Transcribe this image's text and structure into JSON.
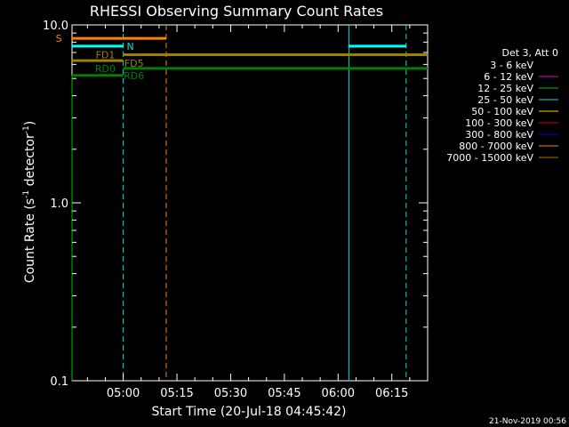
{
  "chart_data": {
    "type": "line",
    "title": "RHESSI Observing Summary Count Rates",
    "xlabel": "Start Time (20-Jul-18 04:45:42)",
    "ylabel_main": "Count Rate (s",
    "ylabel_sup1": "-1",
    "ylabel_mid": " detector",
    "ylabel_sup2": "-1",
    "ylabel_end": ")",
    "y_scale": "log",
    "ylim": [
      0.1,
      10.0
    ],
    "xlim": [
      "04:45:42",
      "06:25:00"
    ],
    "x_ticks": [
      {
        "label": "05:00",
        "t": "05:00"
      },
      {
        "label": "05:15",
        "t": "05:15"
      },
      {
        "label": "05:30",
        "t": "05:30"
      },
      {
        "label": "05:45",
        "t": "05:45"
      },
      {
        "label": "06:00",
        "t": "06:00"
      },
      {
        "label": "06:15",
        "t": "06:15"
      }
    ],
    "y_ticks": [
      {
        "label": "10.0",
        "v": 10.0
      },
      {
        "label": "1.0",
        "v": 1.0
      },
      {
        "label": "0.1",
        "v": 0.1
      }
    ],
    "legend": {
      "title": "Det 3, Att 0",
      "placement": "right",
      "entries": [
        {
          "label": "3 - 6 keV",
          "color": "#000000"
        },
        {
          "label": "6 - 12 keV",
          "color": "#e000e0"
        },
        {
          "label": "12 - 25 keV",
          "color": "#00c000"
        },
        {
          "label": "25 - 50 keV",
          "color": "#00e0e0"
        },
        {
          "label": "50 - 100 keV",
          "color": "#e0e000"
        },
        {
          "label": "100 - 300 keV",
          "color": "#e00000"
        },
        {
          "label": "300 - 800 keV",
          "color": "#0000e0"
        },
        {
          "label": "800 - 7000 keV",
          "color": "#ff8000"
        },
        {
          "label": "7000 - 15000 keV",
          "color": "#a08000"
        }
      ]
    },
    "intervals": [
      {
        "name": "S",
        "color": "#ff8000",
        "y": 8.4,
        "t0": "04:45:42",
        "t1": "05:12:00"
      },
      {
        "name": "N",
        "color": "#00ffff",
        "y": 7.6,
        "t0": "04:45:42",
        "t1": "05:00:00"
      },
      {
        "name": "N",
        "color": "#00ffff",
        "y": 7.6,
        "t0": "06:03:00",
        "t1": "06:19:00"
      },
      {
        "name": "FD1",
        "color": "#a08000",
        "y": 6.3,
        "t0": "04:45:42",
        "t1": "05:00:00"
      },
      {
        "name": "FD5",
        "color": "#a08000",
        "y": 6.8,
        "t0": "05:00:00",
        "t1": "06:25:00"
      },
      {
        "name": "RD0",
        "color": "#008000",
        "y": 5.2,
        "t0": "04:45:42",
        "t1": "05:00:00"
      },
      {
        "name": "RD6",
        "color": "#008000",
        "y": 5.7,
        "t0": "05:00:00",
        "t1": "06:25:00"
      }
    ],
    "interval_labels": [
      {
        "text": "S",
        "color": "#ff8000",
        "t": "04:42:00",
        "y": 8.4
      },
      {
        "text": "N",
        "color": "#00e0e0",
        "t": "05:02:00",
        "y": 7.6
      },
      {
        "text": "FD1",
        "color": "#a08000",
        "t": "04:55:00",
        "y": 6.8
      },
      {
        "text": "FD5",
        "color": "#a08000",
        "t": "05:03:00",
        "y": 6.1
      },
      {
        "text": "RD0",
        "color": "#008000",
        "t": "04:55:00",
        "y": 5.7
      },
      {
        "text": "RD6",
        "color": "#008000",
        "t": "05:03:00",
        "y": 5.2
      }
    ],
    "vertical_markers": [
      {
        "t": "04:45:42",
        "color": "#00c000",
        "style": "solid",
        "y_top": 5.2
      },
      {
        "t": "05:00:00",
        "color": "#00e0e0",
        "style": "dashed"
      },
      {
        "t": "05:12:00",
        "color": "#ff8000",
        "style": "dashed"
      },
      {
        "t": "06:03:00",
        "color": "#00e0e0",
        "style": "solid"
      },
      {
        "t": "06:19:00",
        "color": "#00e0e0",
        "style": "dashed"
      }
    ]
  },
  "footer": "21-Nov-2019 00:56"
}
